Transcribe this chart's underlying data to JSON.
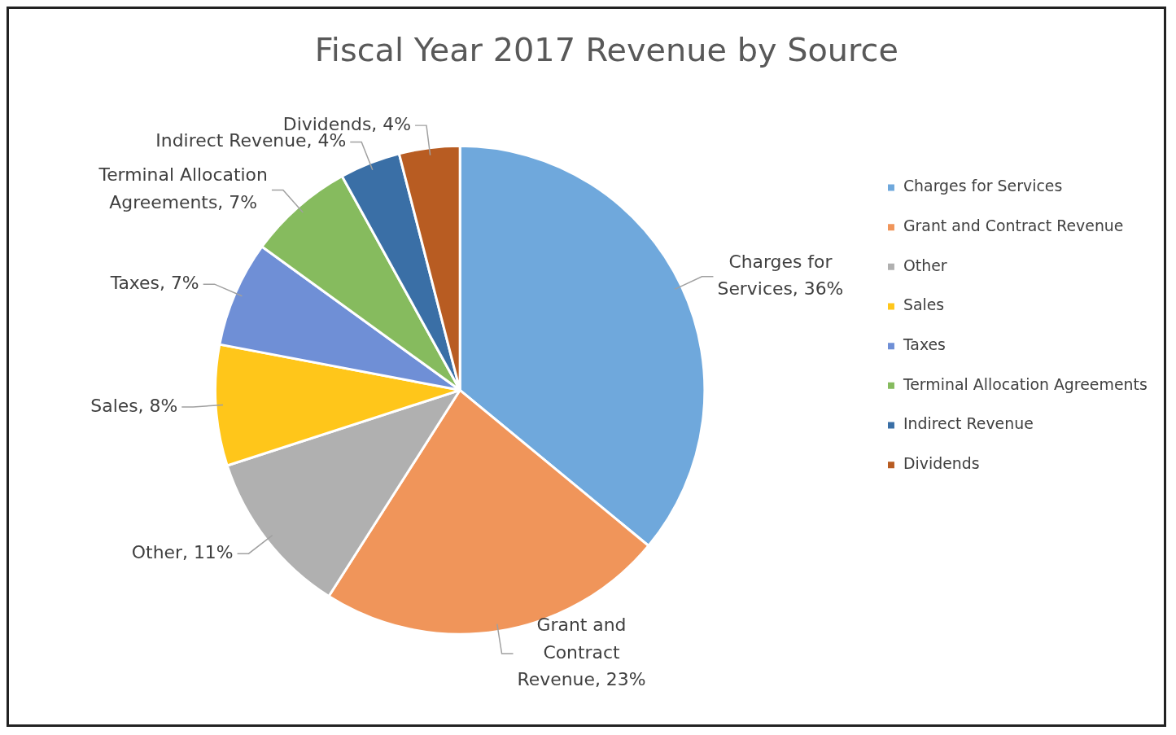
{
  "chart_data": {
    "type": "pie",
    "title": "Fiscal Year 2017 Revenue by Source",
    "categories": [
      "Charges for Services",
      "Grant and Contract Revenue",
      "Other",
      "Sales",
      "Taxes",
      "Terminal Allocation Agreements",
      "Indirect Revenue",
      "Dividends"
    ],
    "values": [
      36,
      23,
      11,
      8,
      7,
      7,
      4,
      4
    ],
    "value_labels": [
      "Charges for Services, 36%",
      "Grant and Contract Revenue, 23%",
      "Other, 11%",
      "Sales, 8%",
      "Taxes, 7%",
      "Terminal Allocation Agreements, 7%",
      "Indirect Revenue, 4%",
      "Dividends, 4%"
    ],
    "colors": [
      "#6fa8dc",
      "#f0955a",
      "#b0b0b0",
      "#ffc61a",
      "#6f8fd6",
      "#86bb5e",
      "#3a6fa6",
      "#b85c22"
    ],
    "legend": "right"
  }
}
